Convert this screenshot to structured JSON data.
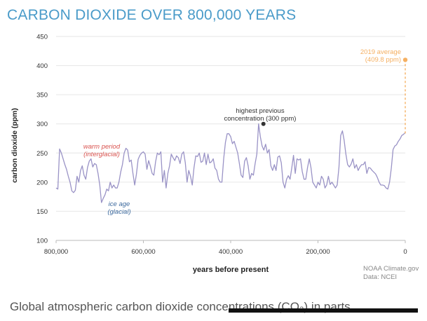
{
  "chart_data": {
    "type": "line",
    "title": "CARBON DIOXIDE OVER 800,000 YEARS",
    "xlabel": "years before present",
    "ylabel": "carbon dioxide (ppm)",
    "xlim": [
      800000,
      0
    ],
    "ylim": [
      100,
      450
    ],
    "x_ticks": [
      "800,000",
      "600,000",
      "400,000",
      "200,000",
      "0"
    ],
    "y_ticks": [
      "100",
      "150",
      "200",
      "250",
      "300",
      "350",
      "400",
      "450"
    ],
    "grid": "horizontal",
    "colors": {
      "series": "#9a93c6",
      "accent": "#f5b062",
      "title": "#4a9bc9",
      "warm": "#d9534f",
      "ice": "#3d6a9e",
      "marker": "#333333"
    },
    "series": [
      {
        "x": [
          800000,
          796000,
          792000,
          788000,
          784000,
          780000,
          776000,
          772000,
          768000,
          764000,
          760000,
          756000,
          752000,
          748000,
          744000,
          740000,
          736000,
          732000,
          728000,
          724000,
          720000,
          716000,
          712000,
          708000,
          704000,
          700000,
          696000,
          692000,
          688000,
          684000,
          680000,
          676000,
          672000,
          668000,
          664000,
          660000,
          656000,
          652000,
          648000,
          644000,
          640000,
          636000,
          632000,
          628000,
          624000,
          620000,
          616000,
          612000,
          608000,
          604000,
          600000,
          596000,
          592000,
          588000,
          584000,
          580000,
          576000,
          572000,
          568000,
          564000,
          560000,
          556000,
          552000,
          548000,
          544000,
          540000,
          536000,
          532000,
          528000,
          524000,
          520000,
          516000,
          512000,
          508000,
          504000,
          500000,
          496000,
          492000,
          488000,
          484000,
          480000,
          476000,
          472000,
          468000,
          464000,
          460000,
          456000,
          452000,
          448000,
          444000,
          440000,
          436000,
          432000,
          428000,
          424000,
          420000,
          416000,
          412000,
          408000,
          404000,
          400000,
          396000,
          392000,
          388000,
          384000,
          380000,
          376000,
          372000,
          368000,
          364000,
          360000,
          356000,
          352000,
          348000,
          344000,
          340000,
          336000,
          332000,
          328000,
          324000,
          320000,
          316000,
          312000,
          308000,
          304000,
          300000,
          296000,
          292000,
          288000,
          284000,
          280000,
          276000,
          272000,
          268000,
          264000,
          260000,
          256000,
          252000,
          248000,
          244000,
          240000,
          236000,
          232000,
          228000,
          224000,
          220000,
          216000,
          212000,
          208000,
          204000,
          200000,
          196000,
          192000,
          188000,
          184000,
          180000,
          176000,
          172000,
          168000,
          164000,
          160000,
          156000,
          152000,
          148000,
          144000,
          140000,
          136000,
          132000,
          128000,
          124000,
          120000,
          116000,
          112000,
          108000,
          104000,
          100000,
          96000,
          92000,
          88000,
          84000,
          80000,
          76000,
          72000,
          68000,
          64000,
          60000,
          56000,
          52000,
          48000,
          44000,
          40000,
          36000,
          32000,
          28000,
          24000,
          20000,
          16000,
          12000,
          8000,
          4000,
          0
        ],
        "values": [
          190,
          188,
          257,
          250,
          240,
          230,
          222,
          210,
          200,
          185,
          182,
          186,
          210,
          200,
          220,
          228,
          212,
          205,
          225,
          236,
          240,
          226,
          232,
          230,
          215,
          195,
          165,
          172,
          178,
          188,
          185,
          200,
          190,
          195,
          190,
          190,
          200,
          217,
          230,
          250,
          258,
          255,
          235,
          238,
          215,
          195,
          213,
          239,
          246,
          250,
          252,
          248,
          222,
          237,
          227,
          215,
          212,
          235,
          250,
          247,
          252,
          200,
          220,
          190,
          215,
          228,
          248,
          242,
          237,
          245,
          242,
          232,
          248,
          252,
          233,
          200,
          220,
          210,
          195,
          225,
          245,
          244,
          250,
          234,
          236,
          250,
          230,
          248,
          233,
          235,
          240,
          224,
          220,
          205,
          200,
          200,
          240,
          268,
          283,
          283,
          278,
          266,
          270,
          260,
          250,
          232,
          212,
          208,
          236,
          242,
          228,
          205,
          215,
          212,
          232,
          248,
          300,
          278,
          262,
          255,
          265,
          250,
          256,
          228,
          220,
          230,
          220,
          243,
          245,
          233,
          200,
          190,
          205,
          211,
          205,
          225,
          246,
          215,
          240,
          238,
          240,
          218,
          205,
          205,
          225,
          240,
          225,
          200,
          195,
          190,
          200,
          195,
          210,
          205,
          190,
          195,
          210,
          196,
          200,
          195,
          190,
          195,
          225,
          280,
          288,
          272,
          248,
          230,
          226,
          231,
          240,
          224,
          230,
          220,
          226,
          230,
          230,
          235,
          215,
          225,
          224,
          220,
          217,
          214,
          208,
          200,
          195,
          195,
          194,
          190,
          188,
          200,
          224,
          256,
          262,
          264,
          270,
          274,
          280,
          282,
          285
        ]
      }
    ],
    "annotations": [
      {
        "lines": [
          "warm period",
          "(interglacial)"
        ],
        "color": "warm",
        "style": "italic"
      },
      {
        "lines": [
          "ice age",
          "(glacial)"
        ],
        "color": "ice",
        "style": "italic"
      },
      {
        "lines": [
          "highest previous",
          "concentration (300 ppm)"
        ],
        "color": "marker",
        "point": {
          "x": 325000,
          "y": 300
        }
      },
      {
        "lines": [
          "2019 average",
          "(409.8 ppm)"
        ],
        "color": "accent",
        "point": {
          "x": 0,
          "y": 409.8
        }
      }
    ],
    "source": [
      "NOAA Climate.gov",
      "Data: NCEI"
    ]
  },
  "caption": "Global atmospheric carbon dioxide concentrations (CO₂) in parts"
}
